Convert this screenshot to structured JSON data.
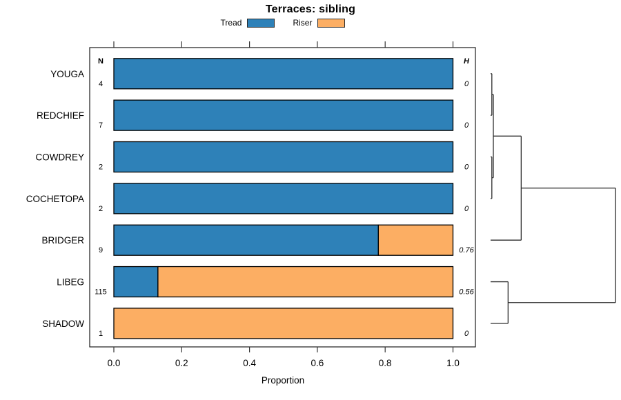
{
  "title": "Terraces: sibling",
  "chart_data": {
    "type": "bar",
    "orientation": "horizontal",
    "stacked": true,
    "title": "Terraces: sibling",
    "xlabel": "Proportion",
    "xlim": [
      0,
      1
    ],
    "xticks": [
      "0.0",
      "0.2",
      "0.4",
      "0.6",
      "0.8",
      "1.0"
    ],
    "n_header": "N",
    "h_header": "H",
    "grid": false,
    "legend_position": "top",
    "legend": [
      {
        "name": "Tread",
        "color": "#2E81B8"
      },
      {
        "name": "Riser",
        "color": "#FCAE63"
      }
    ],
    "rows": [
      {
        "label": "YOUGA",
        "n": "4",
        "tread": 1.0,
        "riser": 0.0,
        "h": "0"
      },
      {
        "label": "REDCHIEF",
        "n": "7",
        "tread": 1.0,
        "riser": 0.0,
        "h": "0"
      },
      {
        "label": "COWDREY",
        "n": "2",
        "tread": 1.0,
        "riser": 0.0,
        "h": "0"
      },
      {
        "label": "COCHETOPA",
        "n": "2",
        "tread": 1.0,
        "riser": 0.0,
        "h": "0"
      },
      {
        "label": "BRIDGER",
        "n": "9",
        "tread": 0.78,
        "riser": 0.22,
        "h": "0.76"
      },
      {
        "label": "LIBEG",
        "n": "115",
        "tread": 0.13,
        "riser": 0.87,
        "h": "0.56"
      },
      {
        "label": "SHADOW",
        "n": "1",
        "tread": 0.0,
        "riser": 1.0,
        "h": "0"
      }
    ],
    "dendrogram": {
      "side": "right",
      "merges": [
        {
          "id": "m1",
          "a": "YOUGA",
          "b": "REDCHIEF",
          "height": 0.01
        },
        {
          "id": "m2",
          "a": "COWDREY",
          "b": "COCHETOPA",
          "height": 0.01
        },
        {
          "id": "m3",
          "a": "m1",
          "b": "m2",
          "height": 0.022
        },
        {
          "id": "m4",
          "a": "m3",
          "b": "BRIDGER",
          "height": 0.245
        },
        {
          "id": "m5",
          "a": "LIBEG",
          "b": "SHADOW",
          "height": 0.14
        },
        {
          "id": "m6",
          "a": "m4",
          "b": "m5",
          "height": 1.0
        }
      ]
    }
  }
}
